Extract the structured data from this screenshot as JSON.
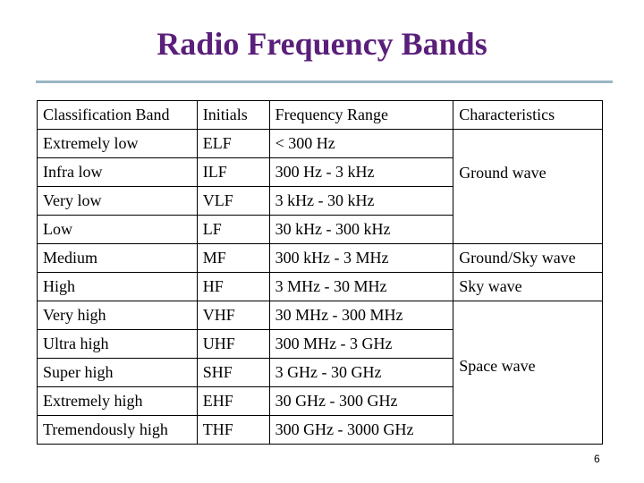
{
  "title": "Radio Frequency Bands",
  "table": {
    "headers": [
      "Classification Band",
      "Initials",
      "Frequency Range",
      "Characteristics"
    ],
    "rows": [
      {
        "band": "Extremely low",
        "initials": "ELF",
        "range": "< 300 Hz"
      },
      {
        "band": "Infra low",
        "initials": "ILF",
        "range": "300 Hz - 3 kHz"
      },
      {
        "band": "Very low",
        "initials": "VLF",
        "range": "3 kHz - 30 kHz"
      },
      {
        "band": "Low",
        "initials": "LF",
        "range": "30 kHz - 300 kHz"
      },
      {
        "band": "Medium",
        "initials": "MF",
        "range": "300 kHz - 3 MHz"
      },
      {
        "band": "High",
        "initials": "HF",
        "range": "3 MHz - 30 MHz"
      },
      {
        "band": "Very high",
        "initials": "VHF",
        "range": "30 MHz - 300 MHz"
      },
      {
        "band": "Ultra high",
        "initials": "UHF",
        "range": "300 MHz - 3 GHz"
      },
      {
        "band": "Super high",
        "initials": "SHF",
        "range": "3 GHz - 30 GHz"
      },
      {
        "band": "Extremely high",
        "initials": "EHF",
        "range": "30 GHz - 300 GHz"
      },
      {
        "band": "Tremendously high",
        "initials": "THF",
        "range": "300 GHz - 3000 GHz"
      }
    ],
    "characteristics": {
      "ground": "Ground wave",
      "ground_sky": "Ground/Sky wave",
      "sky": "Sky wave",
      "space": "Space wave"
    }
  },
  "page_number": "6"
}
